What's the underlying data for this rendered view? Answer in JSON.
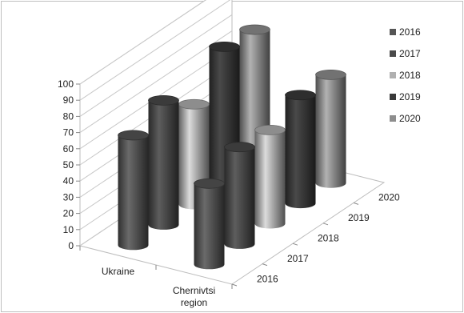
{
  "chart_data": {
    "type": "bar",
    "style": "3d-cylinder",
    "title": "",
    "categories": [
      "Ukraine",
      "Chernivtsi region"
    ],
    "category_lines": [
      [
        "Ukraine"
      ],
      [
        "Chernivtsi",
        "region"
      ]
    ],
    "series": [
      {
        "name": "2016",
        "values": [
          68,
          50
        ],
        "color": "#555555"
      },
      {
        "name": "2017",
        "values": [
          77,
          60
        ],
        "color": "#4a4a4a"
      },
      {
        "name": "2018",
        "values": [
          62,
          58
        ],
        "color": "#b0b0b0"
      },
      {
        "name": "2019",
        "values": [
          85,
          67
        ],
        "color": "#3a3a3a"
      },
      {
        "name": "2020",
        "values": [
          83,
          67
        ],
        "color": "#8e8e8e"
      }
    ],
    "depth_labels": [
      "2016",
      "2017",
      "2018",
      "2019",
      "2020"
    ],
    "y_ticks": [
      "0",
      "10",
      "20",
      "30",
      "40",
      "50",
      "60",
      "70",
      "80",
      "90",
      "100"
    ],
    "ylim": [
      0,
      100
    ],
    "legend_position": "right",
    "grid": true
  }
}
